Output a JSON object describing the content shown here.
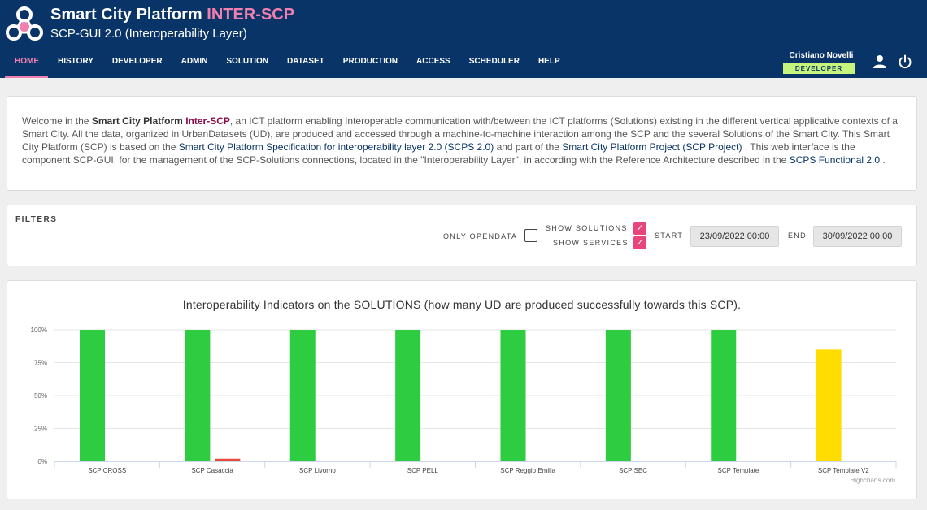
{
  "header": {
    "title_main": "Smart City Platform",
    "title_accent": "INTER-SCP",
    "subtitle": "SCP-GUI 2.0 (Interoperability Layer)",
    "nav": [
      "HOME",
      "HISTORY",
      "DEVELOPER",
      "ADMIN",
      "SOLUTION",
      "DATASET",
      "PRODUCTION",
      "ACCESS",
      "SCHEDULER",
      "HELP"
    ],
    "active_nav": "HOME",
    "user_name": "Cristiano Novelli",
    "user_role": "DEVELOPER",
    "icons": [
      "user-icon",
      "power-icon"
    ]
  },
  "welcome": {
    "t1": "Welcome in the ",
    "b1": "Smart City Platform ",
    "em1": "Inter-SCP",
    "t2": ", an ICT platform enabling Interoperable communication with/between the ICT platforms (Solutions) existing in the different vertical applicative contexts of a Smart City. All the data, organized in UrbanDatasets (UD), are produced and accessed through a machine-to-machine interaction among the SCP and the several Solutions of the Smart City. This Smart City Platform (SCP) is based on the ",
    "link1": "Smart City Platform Specification for interoperability layer 2.0 (SCPS 2.0)",
    "t3": " and part of the ",
    "link2": "Smart City Platform Project (SCP Project)",
    "t4": " . This web interface is the component SCP-GUI, for the management of the SCP-Solutions connections, located in the \"Interoperability Layer\", in according with the Reference Architecture described in the ",
    "link3": "SCPS Functional 2.0",
    "t5": " ."
  },
  "filters": {
    "title": "FILTERS",
    "only_opendata_label": "ONLY OPENDATA",
    "only_opendata": false,
    "show_solutions_label": "SHOW SOLUTIONS",
    "show_solutions": true,
    "show_services_label": "SHOW SERVICES",
    "show_services": true,
    "start_label": "START",
    "start_value": "23/09/2022 00:00",
    "end_label": "END",
    "end_value": "30/09/2022 00:00"
  },
  "chart_data": {
    "type": "bar",
    "title": "Interoperability Indicators on the SOLUTIONS (how many UD are produced successfully towards this SCP).",
    "categories": [
      "SCP CROSS",
      "SCP Casaccia",
      "SCP Livorno",
      "SCP PELL",
      "SCP Reggio Emilia",
      "SCP SEC",
      "SCP Template",
      "SCP Template V2"
    ],
    "series": [
      {
        "values": [
          100,
          100,
          100,
          100,
          100,
          100,
          100,
          85
        ],
        "colors": [
          "#2ecc40",
          "#2ecc40",
          "#2ecc40",
          "#2ecc40",
          "#2ecc40",
          "#2ecc40",
          "#2ecc40",
          "#ffdd00"
        ]
      },
      {
        "values": [
          0,
          2,
          0,
          0,
          0,
          0,
          0,
          0
        ],
        "colors": [
          "#e74c3c",
          "#e74c3c",
          "#e74c3c",
          "#e74c3c",
          "#e74c3c",
          "#e74c3c",
          "#e74c3c",
          "#e74c3c"
        ]
      }
    ],
    "ylim": [
      0,
      100
    ],
    "yticks": [
      "0%",
      "25%",
      "50%",
      "75%",
      "100%"
    ],
    "grid": true,
    "legend": "none",
    "credits": "Highcharts.com"
  }
}
